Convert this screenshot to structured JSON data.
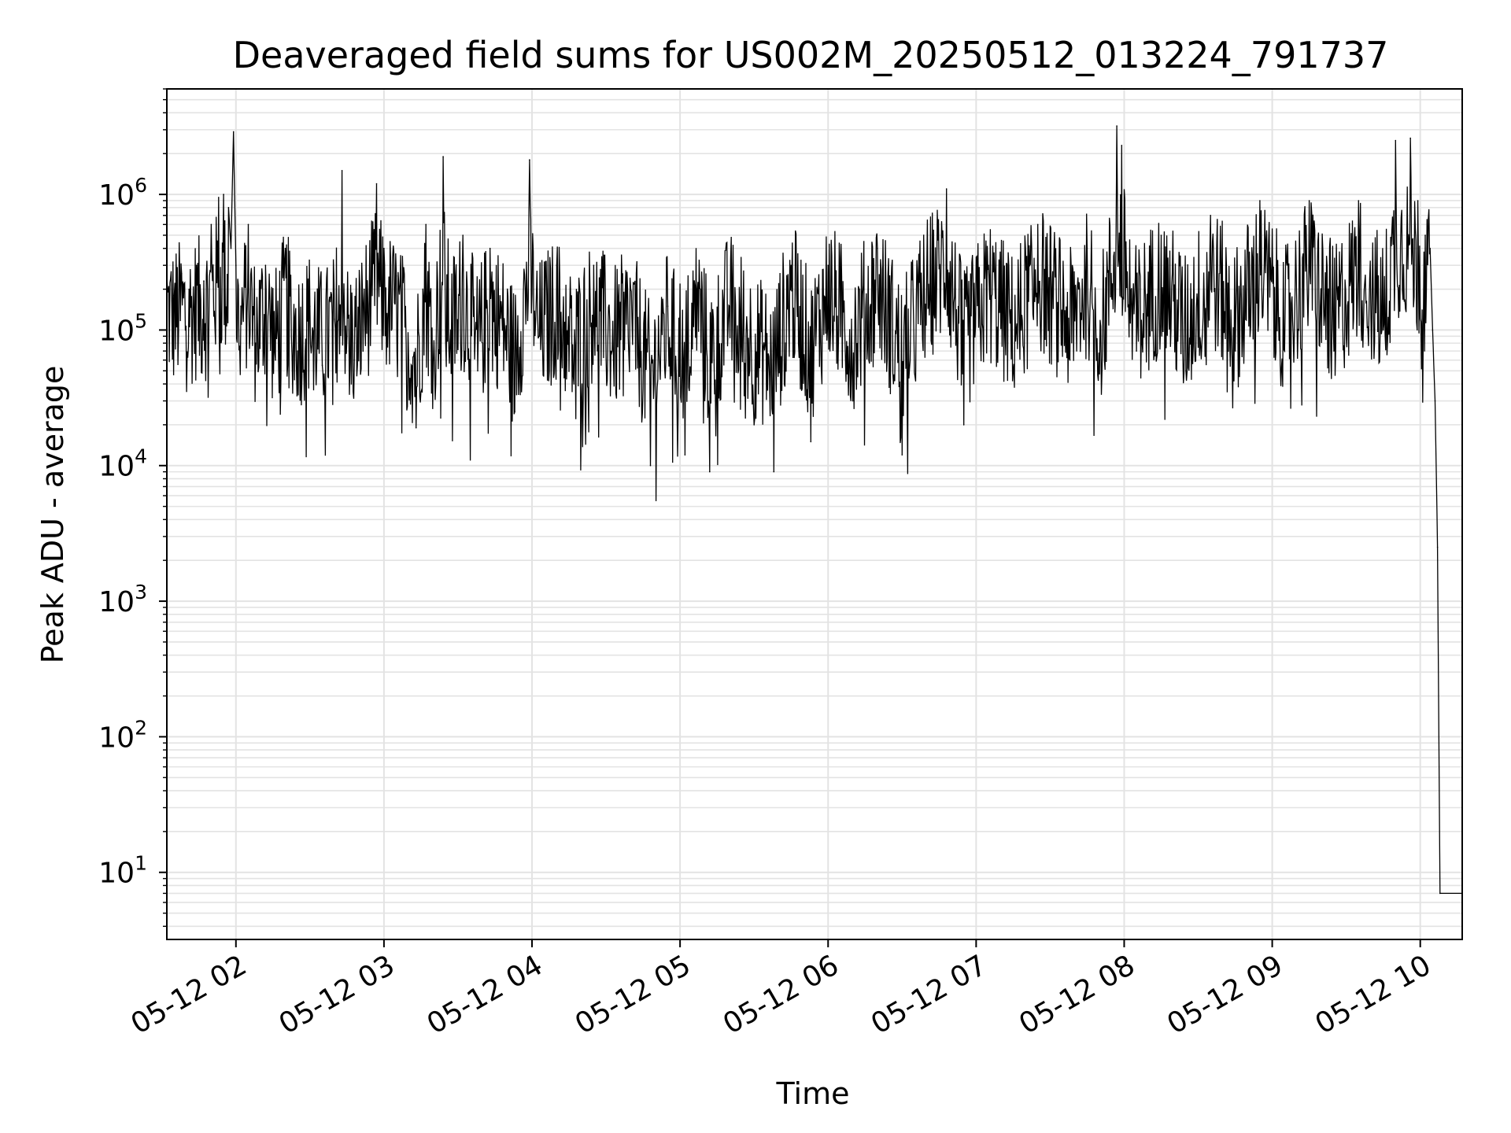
{
  "chart_data": {
    "type": "line",
    "title": "Deaveraged field sums for US002M_20250512_013224_791737",
    "xlabel": "Time",
    "ylabel": "Peak ADU - average",
    "yscale": "log",
    "ylim": [
      3.2,
      6000000
    ],
    "xlim": [
      "2025-05-12 01:32",
      "2025-05-12 10:17"
    ],
    "grid": true,
    "line_color": "#000000",
    "grid_color": "#e3e3e3",
    "x_ticks": [
      {
        "t": "2025-05-12 02:00",
        "label": "05-12 02"
      },
      {
        "t": "2025-05-12 03:00",
        "label": "05-12 03"
      },
      {
        "t": "2025-05-12 04:00",
        "label": "05-12 04"
      },
      {
        "t": "2025-05-12 05:00",
        "label": "05-12 05"
      },
      {
        "t": "2025-05-12 06:00",
        "label": "05-12 06"
      },
      {
        "t": "2025-05-12 07:00",
        "label": "05-12 07"
      },
      {
        "t": "2025-05-12 08:00",
        "label": "05-12 08"
      },
      {
        "t": "2025-05-12 09:00",
        "label": "05-12 09"
      },
      {
        "t": "2025-05-12 10:00",
        "label": "05-12 10"
      }
    ],
    "y_ticks": [
      {
        "value": 10,
        "base": "10",
        "exp": "1"
      },
      {
        "value": 100,
        "base": "10",
        "exp": "2"
      },
      {
        "value": 1000,
        "base": "10",
        "exp": "3"
      },
      {
        "value": 10000,
        "base": "10",
        "exp": "4"
      },
      {
        "value": 100000,
        "base": "10",
        "exp": "5"
      },
      {
        "value": 1000000,
        "base": "10",
        "exp": "6"
      }
    ],
    "series": [
      {
        "points": [
          [
            "2025-05-12 01:32",
            250000
          ],
          [
            "2025-05-12 01:35",
            180000
          ],
          [
            "2025-05-12 01:38",
            260000
          ],
          [
            "2025-05-12 01:41",
            200000
          ],
          [
            "2025-05-12 01:44",
            300000
          ],
          [
            "2025-05-12 01:47",
            230000
          ],
          [
            "2025-05-12 01:50",
            600000
          ],
          [
            "2025-05-12 01:53",
            950000
          ],
          [
            "2025-05-12 01:55",
            1000000
          ],
          [
            "2025-05-12 01:57",
            800000
          ],
          [
            "2025-05-12 01:58",
            400000
          ],
          [
            "2025-05-12 01:59",
            2900000
          ],
          [
            "2025-05-12 02:00",
            300000
          ],
          [
            "2025-05-12 02:02",
            150000
          ],
          [
            "2025-05-12 02:05",
            600000
          ],
          [
            "2025-05-12 02:08",
            80000
          ],
          [
            "2025-05-12 02:12",
            300000
          ],
          [
            "2025-05-12 02:16",
            60000
          ],
          [
            "2025-05-12 02:20",
            400000
          ],
          [
            "2025-05-12 02:25",
            70000
          ],
          [
            "2025-05-12 02:30",
            150000
          ],
          [
            "2025-05-12 02:35",
            55000
          ],
          [
            "2025-05-12 02:40",
            120000
          ],
          [
            "2025-05-12 02:43",
            1500000
          ],
          [
            "2025-05-12 02:45",
            90000
          ],
          [
            "2025-05-12 02:48",
            60000
          ],
          [
            "2025-05-12 02:52",
            200000
          ],
          [
            "2025-05-12 02:57",
            1200000
          ],
          [
            "2025-05-12 03:00",
            400000
          ],
          [
            "2025-05-12 03:05",
            250000
          ],
          [
            "2025-05-12 03:10",
            60000
          ],
          [
            "2025-05-12 03:13",
            19000
          ],
          [
            "2025-05-12 03:17",
            600000
          ],
          [
            "2025-05-12 03:20",
            60000
          ],
          [
            "2025-05-12 03:24",
            1900000
          ],
          [
            "2025-05-12 03:27",
            100000
          ],
          [
            "2025-05-12 03:32",
            500000
          ],
          [
            "2025-05-12 03:38",
            50000
          ],
          [
            "2025-05-12 03:43",
            400000
          ],
          [
            "2025-05-12 03:49",
            100000
          ],
          [
            "2025-05-12 03:53",
            25000
          ],
          [
            "2025-05-12 03:59",
            1800000
          ],
          [
            "2025-05-12 04:03",
            90000
          ],
          [
            "2025-05-12 04:10",
            300000
          ],
          [
            "2025-05-12 04:17",
            40000
          ],
          [
            "2025-05-12 04:25",
            300000
          ],
          [
            "2025-05-12 04:33",
            60000
          ],
          [
            "2025-05-12 04:40",
            200000
          ],
          [
            "2025-05-12 04:48",
            10000
          ],
          [
            "2025-05-12 04:55",
            150000
          ],
          [
            "2025-05-12 05:02",
            12000
          ],
          [
            "2025-05-12 05:07",
            200000
          ],
          [
            "2025-05-12 05:12",
            9000
          ],
          [
            "2025-05-12 05:20",
            150000
          ],
          [
            "2025-05-12 05:30",
            20000
          ],
          [
            "2025-05-12 05:38",
            9000
          ],
          [
            "2025-05-12 05:45",
            300000
          ],
          [
            "2025-05-12 05:53",
            15000
          ],
          [
            "2025-05-12 06:00",
            300000
          ],
          [
            "2025-05-12 06:10",
            30000
          ],
          [
            "2025-05-12 06:20",
            400000
          ],
          [
            "2025-05-12 06:30",
            12000
          ],
          [
            "2025-05-12 06:40",
            300000
          ],
          [
            "2025-05-12 06:48",
            1100000
          ],
          [
            "2025-05-12 06:55",
            20000
          ],
          [
            "2025-05-12 07:05",
            300000
          ],
          [
            "2025-05-12 07:15",
            50000
          ],
          [
            "2025-05-12 07:25",
            600000
          ],
          [
            "2025-05-12 07:38",
            60000
          ],
          [
            "2025-05-12 07:45",
            400000
          ],
          [
            "2025-05-12 07:51",
            50000
          ],
          [
            "2025-05-12 07:57",
            3200000
          ],
          [
            "2025-05-12 07:59",
            2300000
          ],
          [
            "2025-05-12 08:05",
            70000
          ],
          [
            "2025-05-12 08:15",
            500000
          ],
          [
            "2025-05-12 08:25",
            50000
          ],
          [
            "2025-05-12 08:35",
            700000
          ],
          [
            "2025-05-12 08:45",
            70000
          ],
          [
            "2025-05-12 08:55",
            900000
          ],
          [
            "2025-05-12 09:05",
            70000
          ],
          [
            "2025-05-12 09:15",
            900000
          ],
          [
            "2025-05-12 09:25",
            70000
          ],
          [
            "2025-05-12 09:35",
            900000
          ],
          [
            "2025-05-12 09:45",
            100000
          ],
          [
            "2025-05-12 09:50",
            2500000
          ],
          [
            "2025-05-12 09:56",
            2600000
          ],
          [
            "2025-05-12 09:59",
            900000
          ],
          [
            "2025-05-12 10:02",
            500000
          ],
          [
            "2025-05-12 10:04",
            400000
          ],
          [
            "2025-05-12 10:05",
            100000
          ],
          [
            "2025-05-12 10:06",
            30000
          ],
          [
            "2025-05-12 10:07",
            2500
          ],
          [
            "2025-05-12 10:08",
            7
          ],
          [
            "2025-05-12 10:17",
            7
          ]
        ]
      }
    ]
  }
}
